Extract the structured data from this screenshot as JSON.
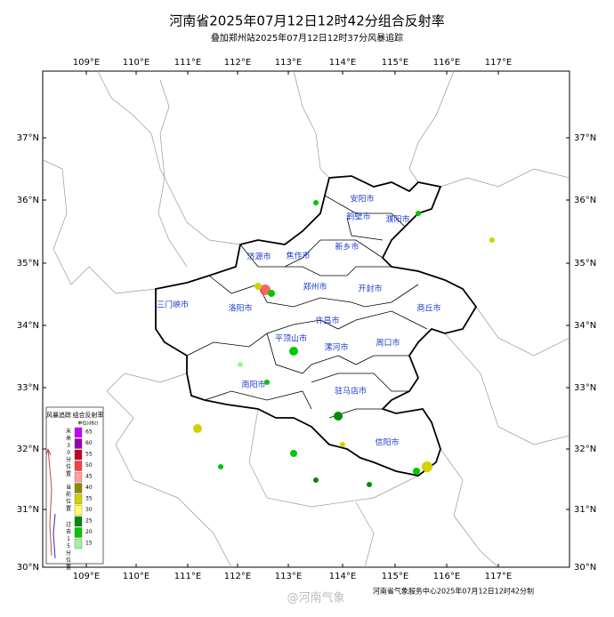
{
  "header": {
    "title": "河南省2025年07月12日12时42分组合反射率",
    "subtitle": "叠加郑州站2025年07月12日12时37分风暴追踪"
  },
  "longitude_labels": [
    "109°E",
    "110°E",
    "111°E",
    "112°E",
    "113°E",
    "114°E",
    "115°E",
    "116°E",
    "117°E"
  ],
  "latitude_labels": [
    "37°N",
    "36°N",
    "35°N",
    "34°N",
    "33°N",
    "32°N",
    "31°N",
    "30°N"
  ],
  "cities": [
    "安阳市",
    "鹤壁市",
    "濮阳市",
    "新乡市",
    "济源市",
    "焦作市",
    "郑州市",
    "开封市",
    "三门峡市",
    "洛阳市",
    "商丘市",
    "许昌市",
    "平顶山市",
    "漯河市",
    "周口市",
    "南阳市",
    "驻马店市",
    "信阳市"
  ],
  "legend": {
    "storm_title": "风暴追踪",
    "reflectivity_title": "组合反射率",
    "unit": "单位(dBz)",
    "track_labels": [
      "未来30分位置",
      "当前位置",
      "过去15分位置"
    ],
    "items": [
      {
        "value": 65,
        "color": "#c800ff"
      },
      {
        "value": 60,
        "color": "#9a00b4"
      },
      {
        "value": 55,
        "color": "#c8001e"
      },
      {
        "value": 50,
        "color": "#ff3c3c"
      },
      {
        "value": 45,
        "color": "#ffa0a0"
      },
      {
        "value": 40,
        "color": "#8c8c00"
      },
      {
        "value": 35,
        "color": "#d2d200"
      },
      {
        "value": 30,
        "color": "#ffff64"
      },
      {
        "value": 25,
        "color": "#008c00"
      },
      {
        "value": 20,
        "color": "#00c800"
      },
      {
        "value": 15,
        "color": "#a0f0a0"
      }
    ]
  },
  "footer": "河南省气象服务中心2025年07月12日12时42分制",
  "watermark": "@河南气象"
}
